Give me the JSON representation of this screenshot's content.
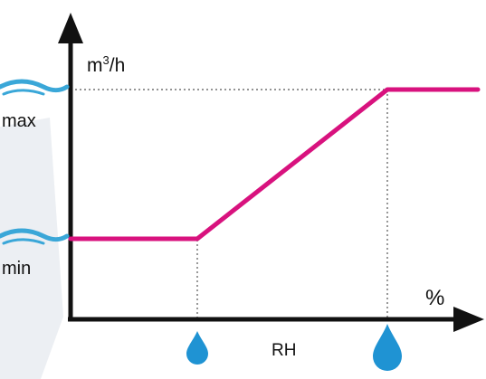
{
  "labels": {
    "y_unit_base": "m",
    "y_unit_sup": "3",
    "y_unit_tail": "/h",
    "max": "max",
    "min": "min",
    "x_unit": "%",
    "x_axis": "RH"
  },
  "icons": {
    "wave": "wave-icon",
    "drop": "water-drop-icon"
  },
  "colors": {
    "curve": "#d8127e",
    "wave": "#3aa7d8",
    "drop": "#1f93d3",
    "axis": "#111111",
    "guide": "#555555",
    "backdrop": "#eceff3"
  }
}
